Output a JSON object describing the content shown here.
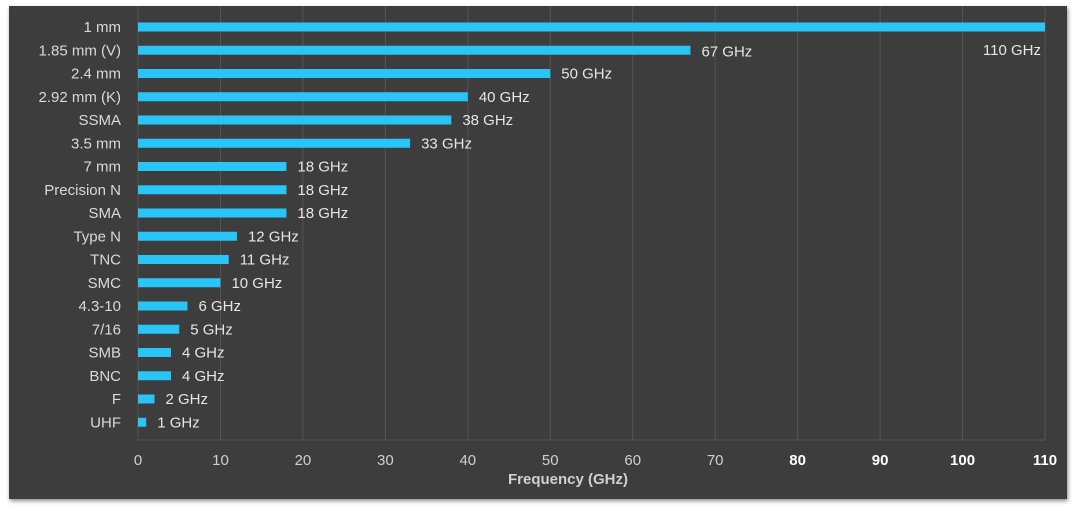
{
  "chart_data": {
    "type": "bar",
    "orientation": "horizontal",
    "categories": [
      "1 mm",
      "1.85 mm (V)",
      "2.4 mm",
      "2.92 mm (K)",
      "SSMA",
      "3.5 mm",
      "7 mm",
      "Precision N",
      "SMA",
      "Type N",
      "TNC",
      "SMC",
      "4.3-10",
      "7/16",
      "SMB",
      "BNC",
      "F",
      "UHF"
    ],
    "values": [
      110,
      67,
      50,
      40,
      38,
      33,
      18,
      18,
      18,
      12,
      11,
      10,
      6,
      5,
      4,
      4,
      2,
      1
    ],
    "data_labels": [
      "110 GHz",
      "67 GHz",
      "50 GHz",
      "40 GHz",
      "38 GHz",
      "33 GHz",
      "18 GHz",
      "18 GHz",
      "18 GHz",
      "12 GHz",
      "11 GHz",
      "10 GHz",
      "6 GHz",
      "5 GHz",
      "4 GHz",
      "4 GHz",
      "2 GHz",
      "1 GHz"
    ],
    "xlabel": "Frequency (GHz)",
    "ylabel": "",
    "title": "",
    "xlim": [
      0,
      110
    ],
    "xticks": [
      0,
      10,
      20,
      30,
      40,
      50,
      60,
      70,
      80,
      90,
      100,
      110
    ],
    "grid": true,
    "legend": "none",
    "colors": {
      "bar": "#29c5f6",
      "background": "#3d3d3d",
      "grid": "#555555"
    }
  }
}
